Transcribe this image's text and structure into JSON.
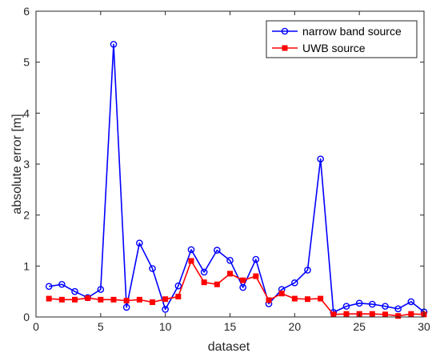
{
  "chart_data": {
    "type": "line",
    "xlabel": "dataset",
    "ylabel": "absolute error [m]",
    "xlim": [
      0,
      30
    ],
    "ylim": [
      0,
      6
    ],
    "xticks": [
      0,
      5,
      10,
      15,
      20,
      25,
      30
    ],
    "yticks": [
      0,
      1,
      2,
      3,
      4,
      5,
      6
    ],
    "grid": false,
    "legend_position": "top-right",
    "x": [
      1,
      2,
      3,
      4,
      5,
      6,
      7,
      8,
      9,
      10,
      11,
      12,
      13,
      14,
      15,
      16,
      17,
      18,
      19,
      20,
      21,
      22,
      23,
      24,
      25,
      26,
      27,
      28,
      29,
      30
    ],
    "series": [
      {
        "name": "narrow band source",
        "color": "#0000ff",
        "marker": "circle",
        "values": [
          0.6,
          0.64,
          0.5,
          0.38,
          0.54,
          5.35,
          0.19,
          1.45,
          0.95,
          0.15,
          0.61,
          1.32,
          0.88,
          1.31,
          1.11,
          0.58,
          1.13,
          0.26,
          0.54,
          0.67,
          0.92,
          3.1,
          0.09,
          0.21,
          0.27,
          0.25,
          0.21,
          0.16,
          0.3,
          0.1
        ]
      },
      {
        "name": "UWB source",
        "color": "#ff0000",
        "marker": "square",
        "values": [
          0.36,
          0.34,
          0.34,
          0.37,
          0.34,
          0.34,
          0.32,
          0.34,
          0.29,
          0.35,
          0.4,
          1.1,
          0.68,
          0.64,
          0.85,
          0.72,
          0.8,
          0.33,
          0.46,
          0.36,
          0.35,
          0.36,
          0.05,
          0.06,
          0.06,
          0.06,
          0.05,
          0.02,
          0.06,
          0.05
        ]
      }
    ]
  }
}
